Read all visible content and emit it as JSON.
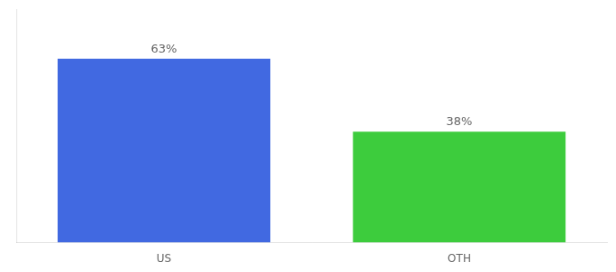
{
  "chart_data": {
    "type": "bar",
    "categories": [
      "US",
      "OTH"
    ],
    "values": [
      63,
      38
    ],
    "value_labels": [
      "63%",
      "38%"
    ],
    "data_labels": true,
    "colors": [
      "#4169e1",
      "#3dcc3d"
    ],
    "ylim": [
      0,
      80
    ],
    "grid": false,
    "tick_labels": "x"
  }
}
